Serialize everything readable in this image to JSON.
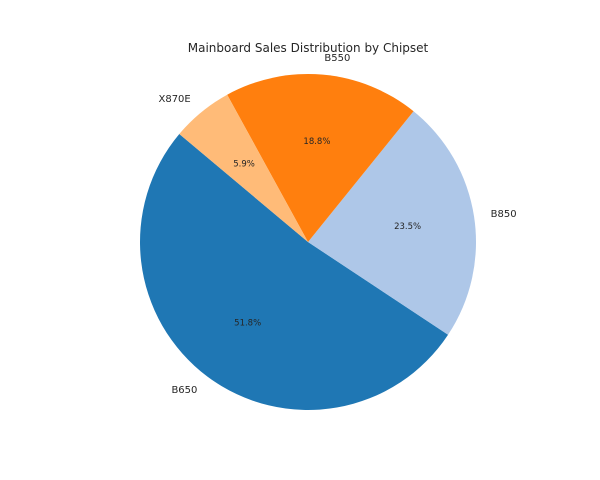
{
  "chart_data": {
    "type": "pie",
    "title": "Mainboard Sales Distribution by Chipset",
    "slices": [
      {
        "label": "B650",
        "value": 51.8,
        "pct_label": "51.8%",
        "color": "#1f77b4"
      },
      {
        "label": "B850",
        "value": 23.5,
        "pct_label": "23.5%",
        "color": "#aec7e8"
      },
      {
        "label": "B550",
        "value": 18.8,
        "pct_label": "18.8%",
        "color": "#ff7f0e"
      },
      {
        "label": "X870E",
        "value": 5.9,
        "pct_label": "5.9%",
        "color": "#ffbb78"
      }
    ],
    "start_angle_deg": 140,
    "direction": "counterclockwise",
    "legend": "none"
  }
}
